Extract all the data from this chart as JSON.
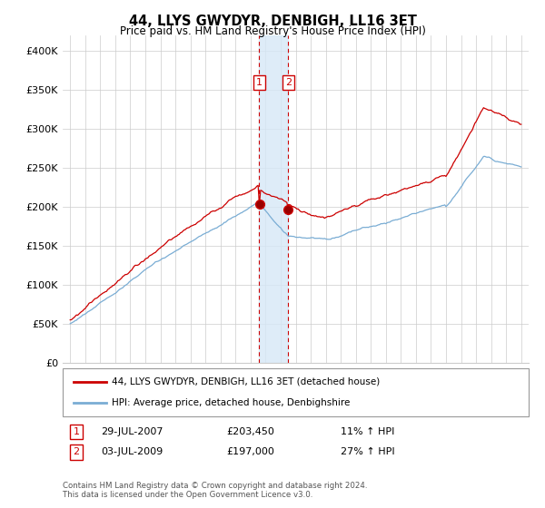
{
  "title": "44, LLYS GWYDYR, DENBIGH, LL16 3ET",
  "subtitle": "Price paid vs. HM Land Registry's House Price Index (HPI)",
  "red_label": "44, LLYS GWYDYR, DENBIGH, LL16 3ET (detached house)",
  "blue_label": "HPI: Average price, detached house, Denbighshire",
  "transaction1_date": "29-JUL-2007",
  "transaction1_price": "£203,450",
  "transaction1_hpi": "11% ↑ HPI",
  "transaction2_date": "03-JUL-2009",
  "transaction2_price": "£197,000",
  "transaction2_hpi": "27% ↑ HPI",
  "footer": "Contains HM Land Registry data © Crown copyright and database right 2024.\nThis data is licensed under the Open Government Licence v3.0.",
  "ylim": [
    0,
    420000
  ],
  "red_color": "#cc0000",
  "blue_color": "#7aadd4",
  "highlight_color": "#d6e8f7",
  "highlight_alpha": 0.8,
  "transaction1_x": 2007.57,
  "transaction2_x": 2009.5,
  "background_color": "#ffffff",
  "grid_color": "#cccccc"
}
